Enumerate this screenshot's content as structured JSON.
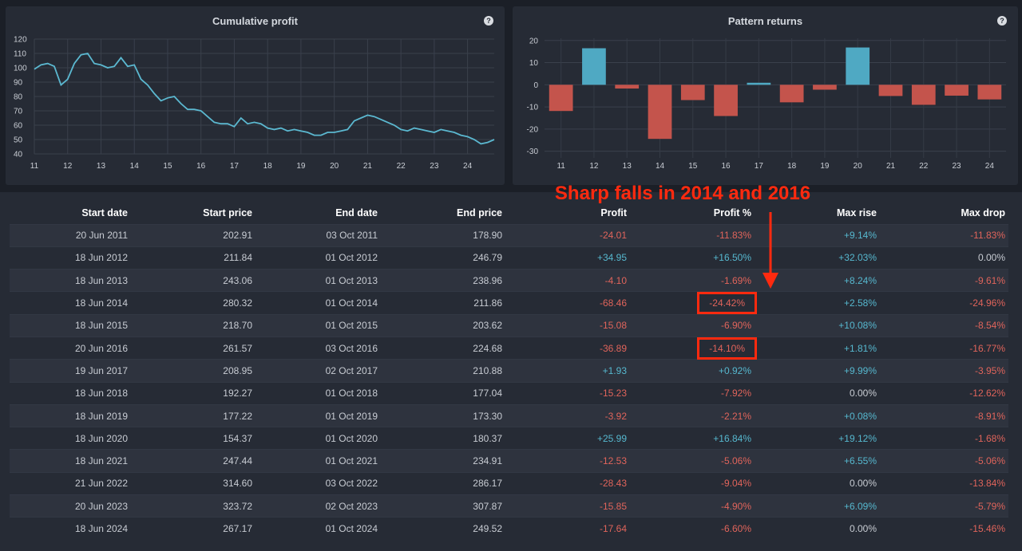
{
  "panels": {
    "cumulative": {
      "title": "Cumulative profit",
      "help_icon": "help-circle-icon"
    },
    "pattern": {
      "title": "Pattern returns",
      "help_icon": "help-circle-icon"
    }
  },
  "chart_data": [
    {
      "type": "line",
      "title": "Cumulative profit",
      "xlabel": "",
      "ylabel": "",
      "x_ticks": [
        "11",
        "12",
        "13",
        "14",
        "15",
        "16",
        "17",
        "18",
        "19",
        "20",
        "21",
        "22",
        "23",
        "24"
      ],
      "y_ticks": [
        40,
        50,
        60,
        70,
        80,
        90,
        100,
        110,
        120
      ],
      "xlim": [
        11,
        24.8
      ],
      "ylim": [
        40,
        120
      ],
      "grid": true,
      "color": "#5bb8d0",
      "x": [
        11,
        11.2,
        11.4,
        11.6,
        11.8,
        12,
        12.2,
        12.4,
        12.6,
        12.8,
        13,
        13.2,
        13.4,
        13.6,
        13.8,
        14,
        14.2,
        14.4,
        14.6,
        14.8,
        15,
        15.2,
        15.4,
        15.6,
        15.8,
        16,
        16.2,
        16.4,
        16.6,
        16.8,
        17,
        17.2,
        17.4,
        17.6,
        17.8,
        18,
        18.2,
        18.4,
        18.6,
        18.8,
        19,
        19.2,
        19.4,
        19.6,
        19.8,
        20,
        20.2,
        20.4,
        20.6,
        20.8,
        21,
        21.2,
        21.4,
        21.6,
        21.8,
        22,
        22.2,
        22.4,
        22.6,
        22.8,
        23,
        23.2,
        23.4,
        23.6,
        23.8,
        24,
        24.2,
        24.4,
        24.6,
        24.8
      ],
      "y": [
        99,
        102,
        103,
        101,
        88,
        92,
        103,
        109,
        110,
        103,
        102,
        100,
        101,
        107,
        101,
        102,
        92,
        88,
        82,
        77,
        79,
        80,
        75,
        71,
        71,
        70,
        66,
        62,
        61,
        61,
        59,
        65,
        61,
        62,
        61,
        58,
        57,
        58,
        56,
        57,
        56,
        55,
        53,
        53,
        55,
        55,
        56,
        57,
        63,
        65,
        67,
        66,
        64,
        62,
        60,
        57,
        56,
        58,
        57,
        56,
        55,
        57,
        56,
        55,
        53,
        52,
        50,
        47,
        48,
        50
      ]
    },
    {
      "type": "bar",
      "title": "Pattern returns",
      "xlabel": "",
      "ylabel": "",
      "categories": [
        "11",
        "12",
        "13",
        "14",
        "15",
        "16",
        "17",
        "18",
        "19",
        "20",
        "21",
        "22",
        "23",
        "24"
      ],
      "values": [
        -11.83,
        16.5,
        -1.69,
        -24.42,
        -6.9,
        -14.1,
        0.92,
        -7.92,
        -2.21,
        16.84,
        -5.06,
        -9.04,
        -4.9,
        -6.6
      ],
      "y_ticks": [
        -30,
        -20,
        -10,
        0,
        10,
        20
      ],
      "ylim": [
        -33,
        21
      ],
      "grid": true,
      "colors": {
        "positive": "#4fa9c3",
        "negative": "#c4544c"
      }
    }
  ],
  "table": {
    "headers": [
      "Start date",
      "Start price",
      "End date",
      "End price",
      "Profit",
      "Profit %",
      "Max rise",
      "Max drop"
    ],
    "rows": [
      [
        "20 Jun 2011",
        "202.91",
        "03 Oct 2011",
        "178.90",
        "-24.01",
        "-11.83%",
        "+9.14%",
        "-11.83%"
      ],
      [
        "18 Jun 2012",
        "211.84",
        "01 Oct 2012",
        "246.79",
        "+34.95",
        "+16.50%",
        "+32.03%",
        "0.00%"
      ],
      [
        "18 Jun 2013",
        "243.06",
        "01 Oct 2013",
        "238.96",
        "-4.10",
        "-1.69%",
        "+8.24%",
        "-9.61%"
      ],
      [
        "18 Jun 2014",
        "280.32",
        "01 Oct 2014",
        "211.86",
        "-68.46",
        "-24.42%",
        "+2.58%",
        "-24.96%"
      ],
      [
        "18 Jun 2015",
        "218.70",
        "01 Oct 2015",
        "203.62",
        "-15.08",
        "-6.90%",
        "+10.08%",
        "-8.54%"
      ],
      [
        "20 Jun 2016",
        "261.57",
        "03 Oct 2016",
        "224.68",
        "-36.89",
        "-14.10%",
        "+1.81%",
        "-16.77%"
      ],
      [
        "19 Jun 2017",
        "208.95",
        "02 Oct 2017",
        "210.88",
        "+1.93",
        "+0.92%",
        "+9.99%",
        "-3.95%"
      ],
      [
        "18 Jun 2018",
        "192.27",
        "01 Oct 2018",
        "177.04",
        "-15.23",
        "-7.92%",
        "0.00%",
        "-12.62%"
      ],
      [
        "18 Jun 2019",
        "177.22",
        "01 Oct 2019",
        "173.30",
        "-3.92",
        "-2.21%",
        "+0.08%",
        "-8.91%"
      ],
      [
        "18 Jun 2020",
        "154.37",
        "01 Oct 2020",
        "180.37",
        "+25.99",
        "+16.84%",
        "+19.12%",
        "-1.68%"
      ],
      [
        "18 Jun 2021",
        "247.44",
        "01 Oct 2021",
        "234.91",
        "-12.53",
        "-5.06%",
        "+6.55%",
        "-5.06%"
      ],
      [
        "21 Jun 2022",
        "314.60",
        "03 Oct 2022",
        "286.17",
        "-28.43",
        "-9.04%",
        "0.00%",
        "-13.84%"
      ],
      [
        "20 Jun 2023",
        "323.72",
        "02 Oct 2023",
        "307.87",
        "-15.85",
        "-4.90%",
        "+6.09%",
        "-5.79%"
      ],
      [
        "18 Jun 2024",
        "267.17",
        "01 Oct 2024",
        "249.52",
        "-17.64",
        "-6.60%",
        "0.00%",
        "-15.46%"
      ]
    ],
    "highlighted_rows": [
      3,
      5
    ],
    "highlight_column": 5
  },
  "annotation": {
    "text": "Sharp falls in 2014 and 2016",
    "color": "#ff2a0f"
  }
}
